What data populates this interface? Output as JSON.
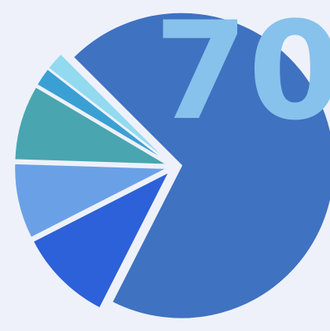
{
  "chart_data": {
    "type": "pie",
    "annotation": "70",
    "values": [
      70,
      10,
      8,
      8,
      2,
      2
    ],
    "colors": [
      "#3f72c0",
      "#2c61da",
      "#6aa1e6",
      "#49a5b0",
      "#3aa0d4",
      "#92daf0"
    ],
    "start_angle": 315
  }
}
